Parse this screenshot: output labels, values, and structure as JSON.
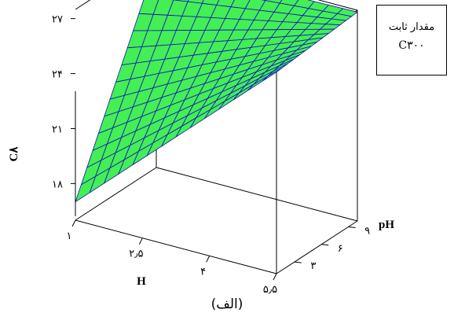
{
  "chart_data": {
    "type": "surface",
    "xlabel": "H",
    "ylabel": "pH",
    "zlabel": "C۸",
    "x_ticks": [
      {
        "value": 1,
        "label": "۱"
      },
      {
        "value": 2.5,
        "label": "۲٫۵"
      },
      {
        "value": 4,
        "label": "۴"
      },
      {
        "value": 5.5,
        "label": "۵٫۵"
      }
    ],
    "y_ticks": [
      {
        "value": 3,
        "label": "۳"
      },
      {
        "value": 6,
        "label": "۶"
      },
      {
        "value": 9,
        "label": "۹"
      }
    ],
    "z_ticks": [
      {
        "value": 18,
        "label": "۱۸"
      },
      {
        "value": 21,
        "label": "۲۱"
      },
      {
        "value": 24,
        "label": "۲۴"
      },
      {
        "value": 27,
        "label": "۲۷"
      }
    ],
    "xlim": [
      1,
      5.5
    ],
    "ylim": [
      1,
      10
    ],
    "zlim": [
      16,
      27.5
    ],
    "surface_corners": {
      "H_min_pH_min": 17.0,
      "H_min_pH_max": 27.2,
      "H_max_pH_min": 27.0,
      "H_max_pH_max": 27.4
    },
    "grid_size": 14,
    "surface_color": "#44ee55",
    "mesh_color": "#1111bb"
  },
  "legend": {
    "line1": "مقدار ثابت",
    "line2": "C۳۰۰"
  },
  "caption": "(الف)"
}
